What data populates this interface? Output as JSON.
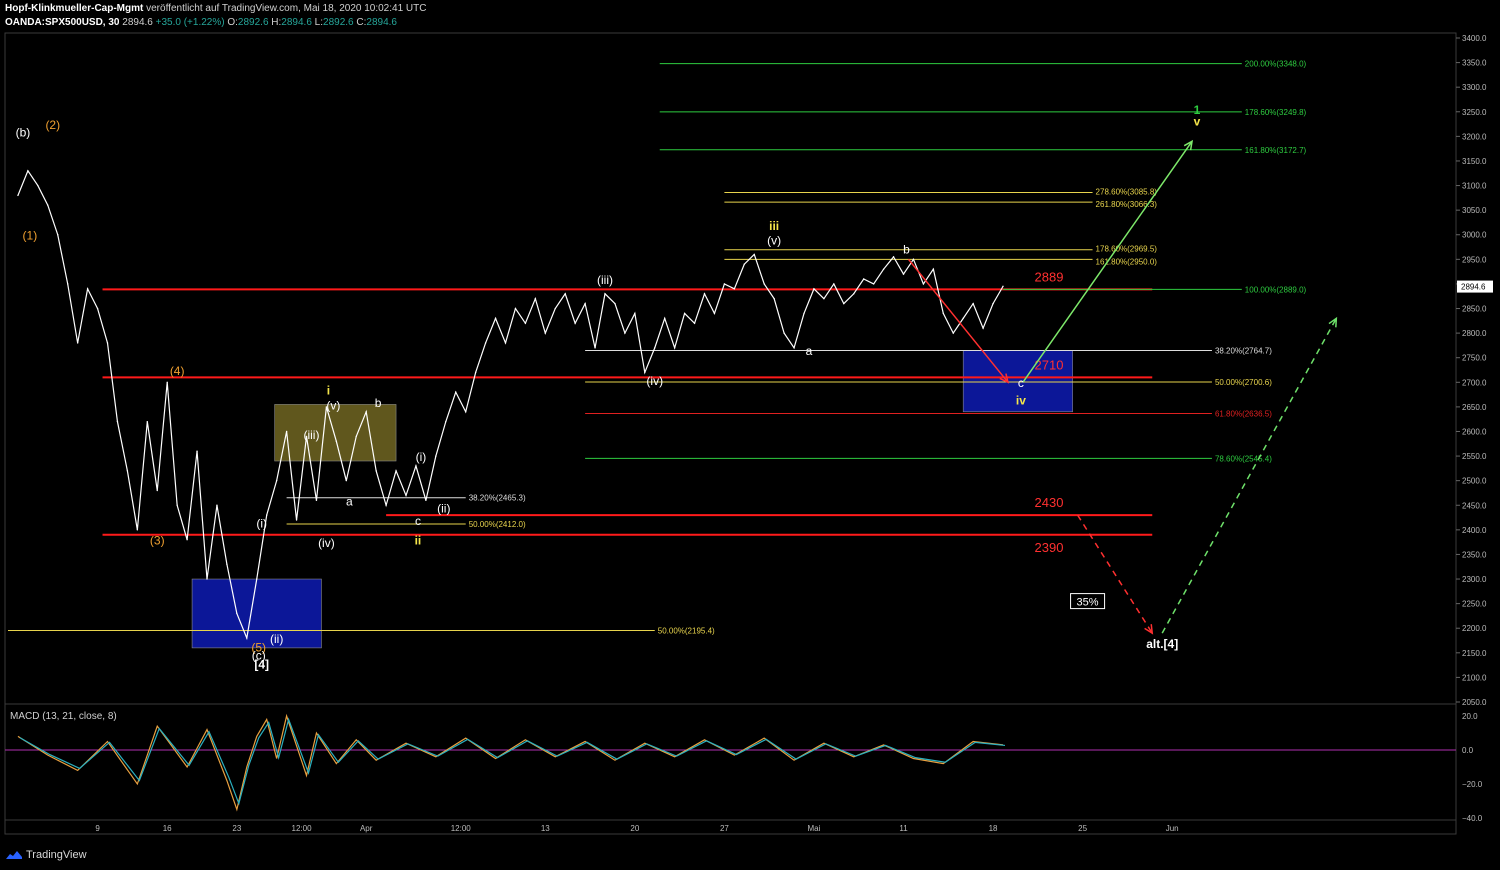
{
  "header": {
    "publisher": "Hopf-Klinkmueller-Cap-Mgmt",
    "published_text": "veröffentlicht auf TradingView.com, Mai 18, 2020 10:02:41 UTC",
    "symbol": "OANDA:SPX500USD, 30",
    "last": "2894.6",
    "change": "+35.0 (+1.22%)",
    "open_label": "O:",
    "open": "2892.6",
    "high_label": "H:",
    "high": "2894.6",
    "low_label": "L:",
    "low": "2892.6",
    "close_label": "C:",
    "close": "2894.6"
  },
  "brand": "TradingView",
  "macd_label": "MACD (13, 21, close, 8)",
  "chart_data": {
    "type": "line",
    "price_axis": {
      "min": 2050,
      "max": 3400,
      "ticks": [
        2050,
        2100,
        2150,
        2200,
        2250,
        2300,
        2350,
        2400,
        2450,
        2500,
        2550,
        2600,
        2650,
        2700,
        2750,
        2800,
        2850,
        2900,
        2950,
        3000,
        3050,
        3100,
        3150,
        3200,
        3250,
        3300,
        3350,
        3400
      ],
      "last_price": "2894.6"
    },
    "macd_axis": {
      "min": -40,
      "max": 20,
      "ticks": [
        "20.0",
        "0.0",
        "−20.0",
        "−40.0"
      ],
      "tick_values": [
        20,
        0,
        -20,
        -40
      ]
    },
    "time_axis": {
      "labels": [
        "9",
        "16",
        "23",
        "12:00",
        "Apr",
        "12:00",
        "13",
        "20",
        "27",
        "Mai",
        "11",
        "18",
        "25",
        "Jun"
      ],
      "positions": [
        9,
        16,
        23,
        29.5,
        36,
        45.5,
        54,
        63,
        72,
        81,
        90,
        99,
        108,
        117
      ]
    },
    "price_series": [
      [
        1,
        3080
      ],
      [
        2,
        3130
      ],
      [
        3,
        3100
      ],
      [
        4,
        3060
      ],
      [
        5,
        3000
      ],
      [
        6,
        2900
      ],
      [
        7,
        2780
      ],
      [
        8,
        2890
      ],
      [
        9,
        2850
      ],
      [
        10,
        2780
      ],
      [
        11,
        2620
      ],
      [
        12,
        2520
      ],
      [
        13,
        2400
      ],
      [
        14,
        2620
      ],
      [
        15,
        2480
      ],
      [
        16,
        2700
      ],
      [
        17,
        2450
      ],
      [
        18,
        2380
      ],
      [
        19,
        2560
      ],
      [
        20,
        2300
      ],
      [
        21,
        2450
      ],
      [
        22,
        2330
      ],
      [
        23,
        2230
      ],
      [
        24,
        2180
      ],
      [
        25,
        2300
      ],
      [
        26,
        2430
      ],
      [
        27,
        2500
      ],
      [
        28,
        2600
      ],
      [
        29,
        2420
      ],
      [
        30,
        2590
      ],
      [
        31,
        2460
      ],
      [
        32,
        2650
      ],
      [
        33,
        2580
      ],
      [
        34,
        2500
      ],
      [
        35,
        2590
      ],
      [
        36,
        2640
      ],
      [
        37,
        2520
      ],
      [
        38,
        2450
      ],
      [
        39,
        2520
      ],
      [
        40,
        2470
      ],
      [
        41,
        2530
      ],
      [
        42,
        2460
      ],
      [
        43,
        2550
      ],
      [
        44,
        2620
      ],
      [
        45,
        2680
      ],
      [
        46,
        2640
      ],
      [
        47,
        2720
      ],
      [
        48,
        2780
      ],
      [
        49,
        2830
      ],
      [
        50,
        2780
      ],
      [
        51,
        2850
      ],
      [
        52,
        2820
      ],
      [
        53,
        2870
      ],
      [
        54,
        2800
      ],
      [
        55,
        2850
      ],
      [
        56,
        2880
      ],
      [
        57,
        2820
      ],
      [
        58,
        2860
      ],
      [
        59,
        2770
      ],
      [
        60,
        2880
      ],
      [
        61,
        2860
      ],
      [
        62,
        2800
      ],
      [
        63,
        2840
      ],
      [
        64,
        2720
      ],
      [
        65,
        2770
      ],
      [
        66,
        2830
      ],
      [
        67,
        2770
      ],
      [
        68,
        2840
      ],
      [
        69,
        2820
      ],
      [
        70,
        2880
      ],
      [
        71,
        2840
      ],
      [
        72,
        2900
      ],
      [
        73,
        2890
      ],
      [
        74,
        2940
      ],
      [
        75,
        2960
      ],
      [
        76,
        2900
      ],
      [
        77,
        2870
      ],
      [
        78,
        2800
      ],
      [
        79,
        2770
      ],
      [
        80,
        2840
      ],
      [
        81,
        2890
      ],
      [
        82,
        2870
      ],
      [
        83,
        2900
      ],
      [
        84,
        2860
      ],
      [
        85,
        2880
      ],
      [
        86,
        2910
      ],
      [
        87,
        2900
      ],
      [
        88,
        2930
      ],
      [
        89,
        2955
      ],
      [
        90,
        2920
      ],
      [
        91,
        2950
      ],
      [
        92,
        2900
      ],
      [
        93,
        2930
      ],
      [
        94,
        2840
      ],
      [
        95,
        2800
      ],
      [
        96,
        2830
      ],
      [
        97,
        2860
      ],
      [
        98,
        2810
      ],
      [
        99,
        2860
      ],
      [
        100,
        2895
      ]
    ],
    "macd_series": [
      [
        1,
        8
      ],
      [
        4,
        -3
      ],
      [
        7,
        -12
      ],
      [
        10,
        5
      ],
      [
        13,
        -20
      ],
      [
        15,
        14
      ],
      [
        18,
        -10
      ],
      [
        20,
        12
      ],
      [
        22,
        -18
      ],
      [
        23,
        -35
      ],
      [
        24,
        -10
      ],
      [
        25,
        8
      ],
      [
        26,
        18
      ],
      [
        27,
        -5
      ],
      [
        28,
        20
      ],
      [
        30,
        -15
      ],
      [
        31,
        10
      ],
      [
        33,
        -8
      ],
      [
        35,
        6
      ],
      [
        37,
        -6
      ],
      [
        40,
        4
      ],
      [
        43,
        -4
      ],
      [
        46,
        7
      ],
      [
        49,
        -5
      ],
      [
        52,
        6
      ],
      [
        55,
        -4
      ],
      [
        58,
        5
      ],
      [
        61,
        -6
      ],
      [
        64,
        4
      ],
      [
        67,
        -4
      ],
      [
        70,
        6
      ],
      [
        73,
        -3
      ],
      [
        76,
        7
      ],
      [
        79,
        -6
      ],
      [
        82,
        4
      ],
      [
        85,
        -4
      ],
      [
        88,
        3
      ],
      [
        91,
        -5
      ],
      [
        94,
        -8
      ],
      [
        97,
        5
      ],
      [
        100,
        3
      ]
    ],
    "horizontal_levels": [
      {
        "price": 2889,
        "label": "2889",
        "color": "#ff1a1a",
        "from": 9.5,
        "to": 115
      },
      {
        "price": 2710,
        "label": "2710",
        "color": "#ff1a1a",
        "from": 9.5,
        "to": 115
      },
      {
        "price": 2430,
        "label": "2430",
        "color": "#ff1a1a",
        "from": 38,
        "to": 115
      },
      {
        "price": 2390,
        "label": "2390",
        "color": "#ff1a1a",
        "from": 9.5,
        "to": 115
      }
    ],
    "fib_levels": [
      {
        "price": 3348.0,
        "label": "200.00%(3348.0)",
        "color": "#2ecc40",
        "from": 65.5,
        "to": 124
      },
      {
        "price": 3249.8,
        "label": "178.60%(3249.8)",
        "color": "#2ecc40",
        "from": 65.5,
        "to": 124
      },
      {
        "price": 3172.7,
        "label": "161.80%(3172.7)",
        "color": "#2ecc40",
        "from": 65.5,
        "to": 124
      },
      {
        "price": 3085.8,
        "label": "278.60%(3085.8)",
        "color": "#e8d44d",
        "from": 72,
        "to": 109
      },
      {
        "price": 3066.3,
        "label": "261.80%(3066.3)",
        "color": "#e8d44d",
        "from": 72,
        "to": 109
      },
      {
        "price": 2969.5,
        "label": "178.60%(2969.5)",
        "color": "#e8d44d",
        "from": 72,
        "to": 109
      },
      {
        "price": 2950.0,
        "label": "161.80%(2950.0)",
        "color": "#e8d44d",
        "from": 72,
        "to": 109
      },
      {
        "price": 2889.0,
        "label": "100.00%(2889.0)",
        "color": "#2ecc40",
        "from": 100,
        "to": 124
      },
      {
        "price": 2764.7,
        "label": "38.20%(2764.7)",
        "color": "#dddddd",
        "from": 58,
        "to": 121
      },
      {
        "price": 2700.6,
        "label": "50.00%(2700.6)",
        "color": "#e8d44d",
        "from": 58,
        "to": 121
      },
      {
        "price": 2636.5,
        "label": "61.80%(2636.5)",
        "color": "#e02020",
        "from": 58,
        "to": 121
      },
      {
        "price": 2545.4,
        "label": "78.60%(2545.4)",
        "color": "#2ecc40",
        "from": 58,
        "to": 121
      },
      {
        "price": 2465.3,
        "label": "38.20%(2465.3)",
        "color": "#dddddd",
        "from": 28,
        "to": 46
      },
      {
        "price": 2412.0,
        "label": "50.00%(2412.0)",
        "color": "#e8d44d",
        "from": 28,
        "to": 46
      },
      {
        "price": 2195.4,
        "label": "50.00%(2195.4)",
        "color": "#e8d44d",
        "from": 0,
        "to": 65
      }
    ],
    "boxes": [
      {
        "x1": 18.5,
        "x2": 31.5,
        "p1": 2300,
        "p2": 2160,
        "color": "#0d1aa8"
      },
      {
        "x1": 26.8,
        "x2": 39,
        "p1": 2655,
        "p2": 2540,
        "color": "#6a6020"
      },
      {
        "x1": 96,
        "x2": 107,
        "p1": 2765,
        "p2": 2640,
        "color": "#0d1aa8"
      }
    ],
    "wave_labels": [
      {
        "text": "(b)",
        "x": 1.5,
        "p": 3200,
        "color": "#ffffff"
      },
      {
        "text": "(2)",
        "x": 4.5,
        "p": 3215,
        "color": "#f0a030"
      },
      {
        "text": "(1)",
        "x": 2.2,
        "p": 2990,
        "color": "#f0a030"
      },
      {
        "text": "(4)",
        "x": 17,
        "p": 2715,
        "color": "#f0a030"
      },
      {
        "text": "(3)",
        "x": 15,
        "p": 2370,
        "color": "#f0a030"
      },
      {
        "text": "(i)",
        "x": 25.5,
        "p": 2405,
        "color": "#ffffff"
      },
      {
        "text": "(ii)",
        "x": 27,
        "p": 2170,
        "color": "#ffffff"
      },
      {
        "text": "(5)",
        "x": 25.2,
        "p": 2153,
        "color": "#f0a030"
      },
      {
        "text": "(c)",
        "x": 25.2,
        "p": 2136,
        "color": "#ffffff"
      },
      {
        "text": "[4]",
        "x": 25.5,
        "p": 2118,
        "color": "#ffffff"
      },
      {
        "text": "(iii)",
        "x": 30.5,
        "p": 2585,
        "color": "#ffffff"
      },
      {
        "text": "(v)",
        "x": 32.7,
        "p": 2645,
        "color": "#ffffff"
      },
      {
        "text": "i",
        "x": 32.2,
        "p": 2675,
        "color": "#f5e64a"
      },
      {
        "text": "b",
        "x": 37.2,
        "p": 2650,
        "color": "#ffffff"
      },
      {
        "text": "a",
        "x": 34.3,
        "p": 2450,
        "color": "#ffffff"
      },
      {
        "text": "(iv)",
        "x": 32,
        "p": 2365,
        "color": "#ffffff"
      },
      {
        "text": "(i)",
        "x": 41.5,
        "p": 2540,
        "color": "#ffffff"
      },
      {
        "text": "(ii)",
        "x": 43.8,
        "p": 2435,
        "color": "#ffffff"
      },
      {
        "text": "c",
        "x": 41.2,
        "p": 2410,
        "color": "#ffffff"
      },
      {
        "text": "ii",
        "x": 41.2,
        "p": 2370,
        "color": "#f5e64a"
      },
      {
        "text": "(iii)",
        "x": 60,
        "p": 2900,
        "color": "#ffffff"
      },
      {
        "text": "(iv)",
        "x": 65,
        "p": 2695,
        "color": "#ffffff"
      },
      {
        "text": "iii",
        "x": 77,
        "p": 3010,
        "color": "#f5e64a"
      },
      {
        "text": "(v)",
        "x": 77,
        "p": 2980,
        "color": "#ffffff"
      },
      {
        "text": "a",
        "x": 80.5,
        "p": 2755,
        "color": "#ffffff"
      },
      {
        "text": "b",
        "x": 90.3,
        "p": 2962,
        "color": "#ffffff"
      },
      {
        "text": "c",
        "x": 101.8,
        "p": 2690,
        "color": "#ffffff"
      },
      {
        "text": "iv",
        "x": 101.8,
        "p": 2655,
        "color": "#f5e64a"
      },
      {
        "text": "1",
        "x": 119.5,
        "p": 3245,
        "color": "#2ecc40"
      },
      {
        "text": "v",
        "x": 119.5,
        "p": 3222,
        "color": "#f5e64a"
      },
      {
        "text": "alt.[4]",
        "x": 116,
        "p": 2160,
        "color": "#ffffff"
      }
    ],
    "arrows": [
      {
        "from": [
          90.5,
          2950
        ],
        "to": [
          100.5,
          2700
        ],
        "color": "#ff3030",
        "dash": false
      },
      {
        "from": [
          102,
          2700
        ],
        "to": [
          119,
          3190
        ],
        "color": "#7de86a",
        "dash": false
      },
      {
        "from": [
          107.5,
          2430
        ],
        "to": [
          115,
          2190
        ],
        "color": "#ff3030",
        "dash": true
      },
      {
        "from": [
          116,
          2190
        ],
        "to": [
          133.5,
          2830
        ],
        "color": "#6ee06a",
        "dash": true
      }
    ],
    "percent_badge": {
      "text": "35%",
      "x": 108.5,
      "p": 2246
    }
  }
}
